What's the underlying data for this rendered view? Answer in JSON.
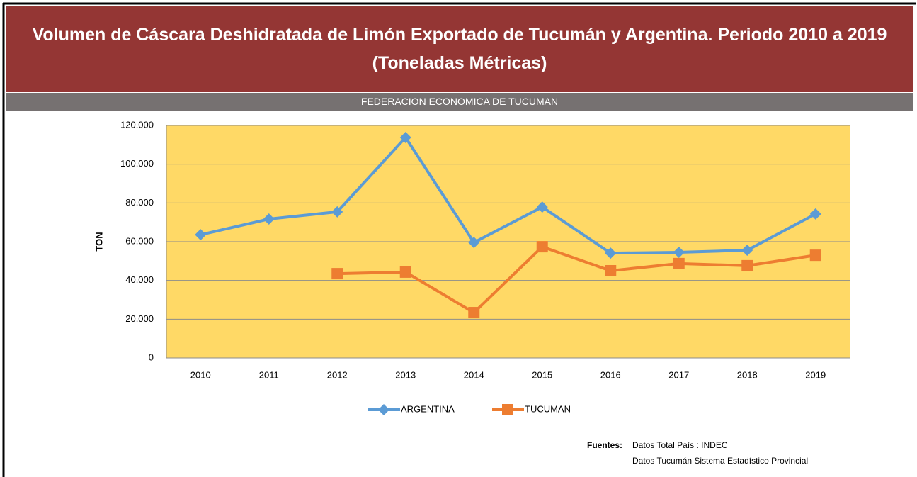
{
  "chart_data": {
    "type": "line",
    "title": "Volumen de Cáscara Deshidratada  de Limón Exportado de Tucumán y Argentina. Periodo 2010 a 2019 (Toneladas Métricas)",
    "subtitle": "FEDERACION ECONOMICA DE TUCUMAN",
    "y_label": "TON",
    "categories": [
      "2010",
      "2011",
      "2012",
      "2013",
      "2014",
      "2015",
      "2016",
      "2017",
      "2018",
      "2019"
    ],
    "series": [
      {
        "name": "ARGENTINA",
        "color": "#5B9BD5",
        "marker": "diamond",
        "values": [
          63600,
          71700,
          75400,
          113800,
          59600,
          77900,
          54100,
          54500,
          55600,
          74300
        ]
      },
      {
        "name": "TUCUMAN",
        "color": "#ED7D31",
        "marker": "square",
        "values": [
          null,
          null,
          43500,
          44300,
          23400,
          57400,
          45000,
          48700,
          47600,
          53000
        ]
      }
    ],
    "ylim": [
      0,
      120000
    ],
    "yticks": [
      0,
      {
        "value": 20000,
        "label": "20.000"
      },
      {
        "value": 40000,
        "label": "40.000"
      },
      {
        "value": 60000,
        "label": "60.000"
      },
      {
        "value": 80000,
        "label": "80.000"
      },
      {
        "value": 100000,
        "label": "100.000"
      },
      {
        "value": 120000,
        "label": "120.000"
      }
    ],
    "grid": true,
    "plot_background": "#FFD966",
    "legend": "bottom",
    "source_label": "Fuentes:",
    "sources": [
      "Datos Total País : INDEC",
      "Datos Tucumán Sistema Estadístico Provincial"
    ]
  }
}
